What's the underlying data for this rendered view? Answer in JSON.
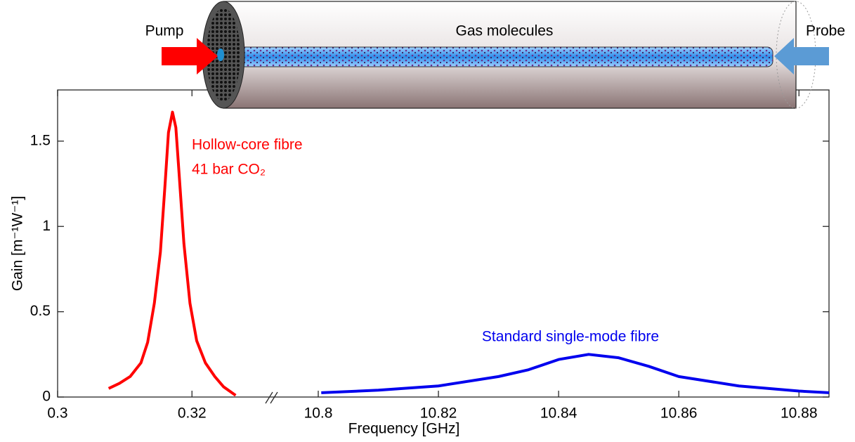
{
  "diagram": {
    "labels": [
      "Pump",
      "Gas molecules",
      "Probe"
    ]
  },
  "chart_data": [
    {
      "type": "line",
      "xlabel": "Frequency [GHz]",
      "ylabel": "Gain [m⁻¹W⁻¹]",
      "xlim": [
        0.3,
        0.332
      ],
      "xticks": [
        0.3,
        0.32
      ],
      "ylim": [
        0,
        1.8
      ],
      "yticks": [
        0,
        0.5,
        1,
        1.5
      ],
      "x": [
        0.3076,
        0.3092,
        0.3108,
        0.3124,
        0.3134,
        0.3144,
        0.3153,
        0.316,
        0.3165,
        0.3171,
        0.3176,
        0.3181,
        0.3188,
        0.3197,
        0.3207,
        0.322,
        0.3234,
        0.3247,
        0.3265
      ],
      "series": [
        {
          "color": "#ff0000",
          "values": [
            0.05,
            0.08,
            0.12,
            0.2,
            0.32,
            0.55,
            0.85,
            1.25,
            1.55,
            1.67,
            1.58,
            1.3,
            0.9,
            0.55,
            0.33,
            0.2,
            0.12,
            0.06,
            0.01
          ]
        }
      ],
      "annotations": [
        "Hollow-core fibre",
        "41 bar CO₂"
      ]
    },
    {
      "type": "line",
      "xlim": [
        10.8,
        10.885
      ],
      "xticks": [
        10.8,
        10.82,
        10.84,
        10.86,
        10.88
      ],
      "ylim": [
        0,
        1.8
      ],
      "x": [
        10.8005,
        10.81,
        10.82,
        10.83,
        10.835,
        10.84,
        10.845,
        10.85,
        10.855,
        10.86,
        10.87,
        10.88,
        10.885
      ],
      "series": [
        {
          "color": "#0000ee",
          "values": [
            0.025,
            0.04,
            0.065,
            0.12,
            0.16,
            0.22,
            0.25,
            0.23,
            0.18,
            0.12,
            0.065,
            0.035,
            0.025
          ]
        }
      ],
      "annotations": [
        "Standard single-mode fibre"
      ]
    }
  ]
}
